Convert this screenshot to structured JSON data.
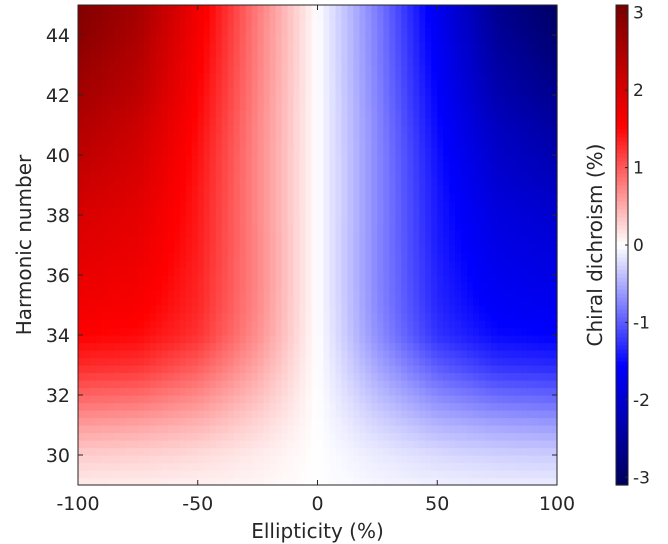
{
  "chart_data": {
    "type": "heatmap",
    "title": "",
    "xlabel": "Ellipticity (%)",
    "ylabel": "Harmonic number",
    "colorbar_label": "Chiral dichroism (%)",
    "xlim": [
      -100,
      100
    ],
    "ylim": [
      29,
      45
    ],
    "x_ticks": [
      -100,
      -50,
      0,
      50,
      100
    ],
    "y_ticks": [
      30,
      32,
      34,
      36,
      38,
      40,
      42,
      44
    ],
    "colorbar_lim": [
      -3.1,
      3.1
    ],
    "colorbar_ticks": [
      -3,
      -2,
      -1,
      0,
      1,
      2,
      3
    ],
    "colormap": [
      "#00005a",
      "#0000ff",
      "#ffffff",
      "#ff0000",
      "#780000"
    ],
    "x": [
      -100,
      -75,
      -50,
      -25,
      0,
      25,
      50,
      75,
      100
    ],
    "y": [
      29,
      30,
      31,
      32,
      33,
      34,
      35,
      36,
      37,
      38,
      39,
      40,
      41,
      42,
      43,
      44,
      45
    ],
    "z": [
      [
        0.12,
        0.11,
        0.09,
        0.06,
        0.0,
        -0.06,
        -0.09,
        -0.11,
        -0.12
      ],
      [
        0.3,
        0.28,
        0.22,
        0.12,
        0.0,
        -0.12,
        -0.22,
        -0.28,
        -0.3
      ],
      [
        0.6,
        0.55,
        0.45,
        0.25,
        0.0,
        -0.25,
        -0.45,
        -0.55,
        -0.6
      ],
      [
        0.95,
        0.9,
        0.72,
        0.4,
        0.0,
        -0.4,
        -0.72,
        -0.9,
        -0.95
      ],
      [
        1.3,
        1.25,
        1.0,
        0.55,
        0.0,
        -0.55,
        -1.0,
        -1.25,
        -1.3
      ],
      [
        1.55,
        1.5,
        1.25,
        0.68,
        0.0,
        -0.68,
        -1.25,
        -1.5,
        -1.55
      ],
      [
        1.7,
        1.62,
        1.32,
        0.72,
        0.0,
        -0.72,
        -1.32,
        -1.62,
        -1.7
      ],
      [
        1.8,
        1.7,
        1.35,
        0.73,
        0.0,
        -0.73,
        -1.35,
        -1.7,
        -1.8
      ],
      [
        1.9,
        1.78,
        1.38,
        0.73,
        0.0,
        -0.73,
        -1.38,
        -1.78,
        -1.9
      ],
      [
        2.0,
        1.85,
        1.4,
        0.72,
        0.0,
        -0.72,
        -1.4,
        -1.85,
        -2.0
      ],
      [
        2.15,
        1.95,
        1.42,
        0.72,
        0.0,
        -0.72,
        -1.42,
        -1.95,
        -2.15
      ],
      [
        2.3,
        2.05,
        1.45,
        0.72,
        0.0,
        -0.72,
        -1.45,
        -2.05,
        -2.3
      ],
      [
        2.45,
        2.15,
        1.5,
        0.73,
        0.0,
        -0.73,
        -1.5,
        -2.15,
        -2.45
      ],
      [
        2.6,
        2.3,
        1.55,
        0.75,
        0.0,
        -0.75,
        -1.55,
        -2.3,
        -2.6
      ],
      [
        2.75,
        2.4,
        1.6,
        0.77,
        0.0,
        -0.77,
        -1.6,
        -2.4,
        -2.75
      ],
      [
        2.9,
        2.5,
        1.65,
        0.78,
        0.0,
        -0.78,
        -1.65,
        -2.5,
        -2.9
      ],
      [
        3.0,
        2.6,
        1.7,
        0.8,
        0.0,
        -0.8,
        -1.7,
        -2.6,
        -3.0
      ]
    ]
  }
}
